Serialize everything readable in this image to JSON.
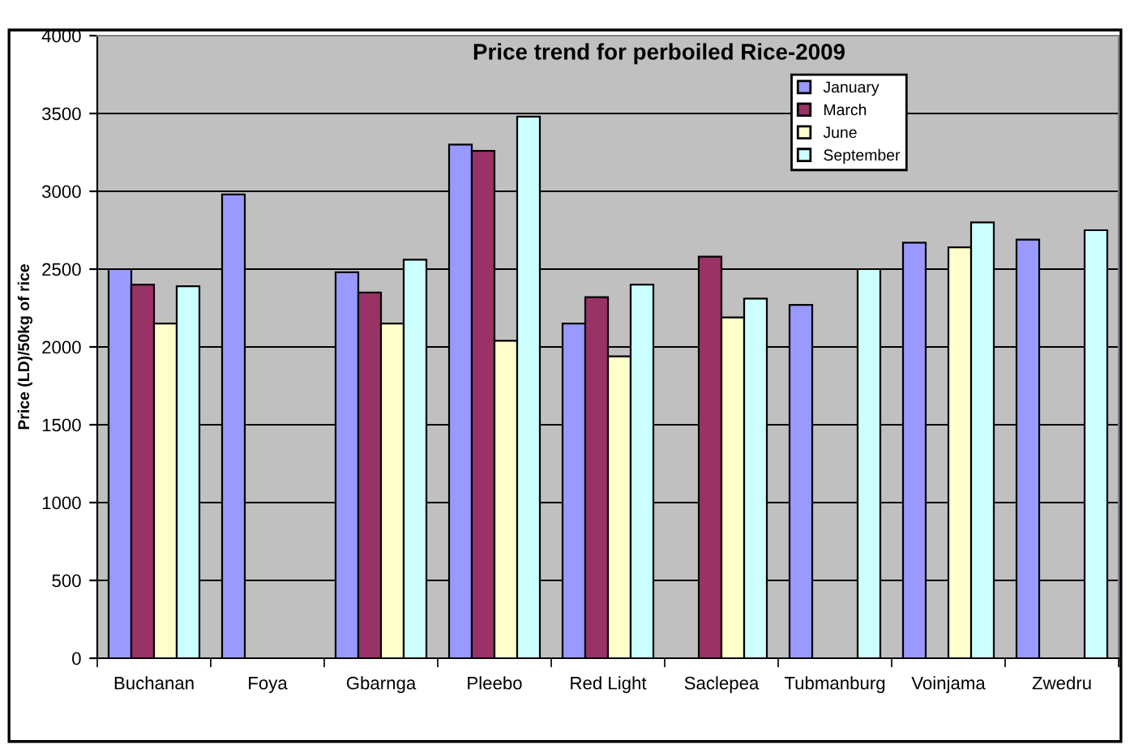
{
  "chart_data": {
    "type": "bar",
    "title": "Price trend for perboiled Rice-2009",
    "ylabel": "Price (LD)/50kg of rice",
    "categories": [
      "Buchanan",
      "Foya",
      "Gbarnga",
      "Pleebo",
      "Red Light",
      "Saclepea",
      "Tubmanburg",
      "Voinjama",
      "Zwedru"
    ],
    "series": [
      {
        "name": "January",
        "color": "#9999ff",
        "values": [
          2500,
          2980,
          2480,
          3300,
          2150,
          null,
          2270,
          2670,
          2690
        ]
      },
      {
        "name": "March",
        "color": "#993366",
        "values": [
          2400,
          null,
          2350,
          3260,
          2320,
          2580,
          null,
          null,
          null
        ]
      },
      {
        "name": "June",
        "color": "#ffffcc",
        "values": [
          2150,
          null,
          2150,
          2040,
          1940,
          2190,
          null,
          2640,
          null
        ]
      },
      {
        "name": "September",
        "color": "#ccffff",
        "values": [
          2390,
          null,
          2560,
          3480,
          2400,
          2310,
          2500,
          2800,
          2750
        ]
      }
    ],
    "ylim": [
      0,
      4000
    ],
    "yticks": [
      0,
      500,
      1000,
      1500,
      2000,
      2500,
      3000,
      3500,
      4000
    ],
    "grid": "y",
    "legend": "top right"
  }
}
